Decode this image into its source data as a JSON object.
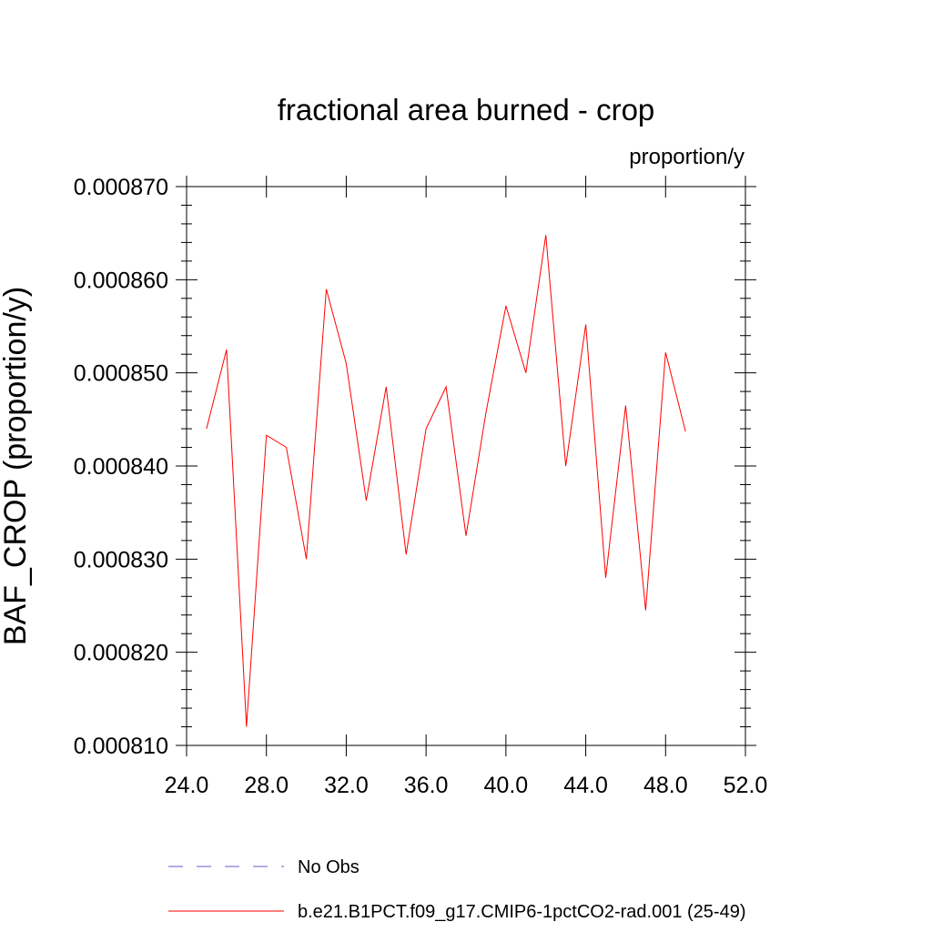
{
  "chart_data": {
    "type": "line",
    "title": "fractional area burned - crop",
    "units_label": "proportion/y",
    "xlabel": "",
    "ylabel": "BAF_CROP  (proportion/y)",
    "xlim": [
      24.0,
      52.0
    ],
    "ylim": [
      0.00081,
      0.00087
    ],
    "x_ticks": [
      "24.0",
      "28.0",
      "32.0",
      "36.0",
      "40.0",
      "44.0",
      "48.0",
      "52.0"
    ],
    "y_ticks": [
      "0.000810",
      "0.000820",
      "0.000830",
      "0.000840",
      "0.000850",
      "0.000860",
      "0.000870"
    ],
    "grid": false,
    "legend_position": "bottom",
    "series": [
      {
        "name": "b.e21.B1PCT.f09_g17.CMIP6-1pctCO2-rad.001 (25-49)",
        "color": "#ff0000",
        "line_style": "solid",
        "x": [
          25,
          26,
          27,
          28,
          29,
          30,
          31,
          32,
          33,
          34,
          35,
          36,
          37,
          38,
          39,
          40,
          41,
          42,
          43,
          44,
          45,
          46,
          47,
          48,
          49
        ],
        "y": [
          0.000844,
          0.0008525,
          0.000812,
          0.0008433,
          0.000842,
          0.00083,
          0.000859,
          0.000851,
          0.0008363,
          0.0008485,
          0.0008305,
          0.000844,
          0.0008485,
          0.0008325,
          0.0008457,
          0.0008572,
          0.00085,
          0.0008648,
          0.00084,
          0.0008552,
          0.000828,
          0.0008465,
          0.0008245,
          0.0008522,
          0.0008437
        ]
      }
    ],
    "legend": [
      {
        "label": "No Obs",
        "color": "#6a5acd",
        "line_style": "dashed"
      },
      {
        "label": "b.e21.B1PCT.f09_g17.CMIP6-1pctCO2-rad.001 (25-49)",
        "color": "#ff0000",
        "line_style": "solid"
      }
    ]
  }
}
